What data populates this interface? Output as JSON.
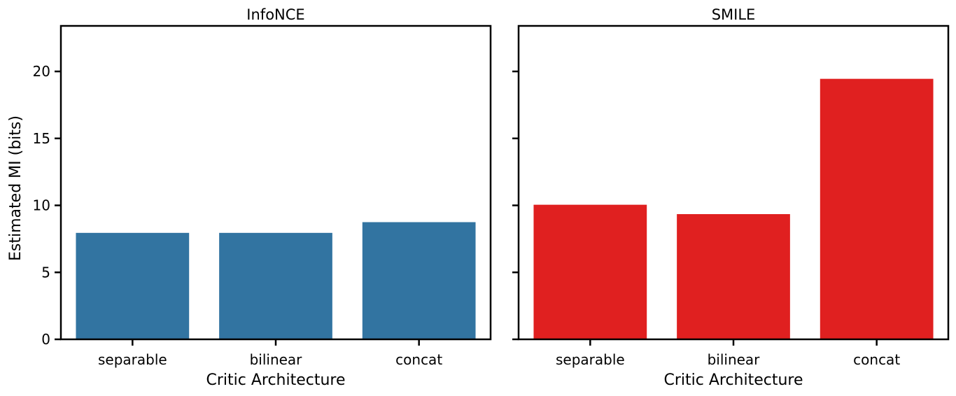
{
  "chart_data": [
    {
      "type": "bar",
      "title": "InfoNCE",
      "xlabel": "Critic Architecture",
      "ylabel": "Estimated MI (bits)",
      "categories": [
        "separable",
        "bilinear",
        "concat"
      ],
      "values": [
        8.0,
        8.0,
        8.8
      ],
      "ylim": [
        0,
        23.4
      ],
      "yticks": [
        0,
        5,
        10,
        15,
        20
      ],
      "color": "#3274a1",
      "grid": false
    },
    {
      "type": "bar",
      "title": "SMILE",
      "xlabel": "Critic Architecture",
      "ylabel": "",
      "categories": [
        "separable",
        "bilinear",
        "concat"
      ],
      "values": [
        10.1,
        9.4,
        19.5
      ],
      "ylim": [
        0,
        23.4
      ],
      "yticks": [
        0,
        5,
        10,
        15,
        20
      ],
      "show_ytick_labels": false,
      "color": "#e02020",
      "grid": false
    }
  ]
}
